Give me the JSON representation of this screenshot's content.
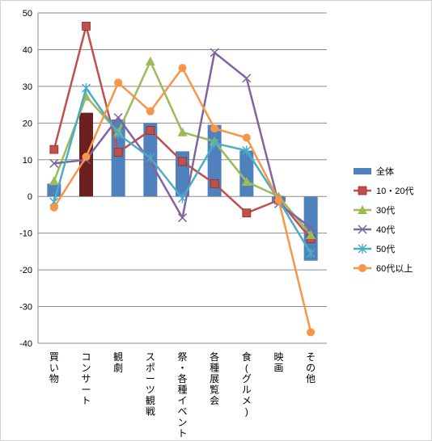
{
  "chart_data": {
    "type": "bar+line",
    "title": "",
    "xlabel": "",
    "ylabel": "",
    "ylim": [
      -40,
      50
    ],
    "yticks": [
      -40,
      -30,
      -20,
      -10,
      0,
      10,
      20,
      30,
      40,
      50
    ],
    "grid": true,
    "legend_position": "right",
    "categories": [
      "買い物",
      "コンサート",
      "観劇",
      "スポーツ観戦",
      "祭・各種イベント",
      "各種展覧会",
      "食(グルメ)",
      "映画",
      "その他"
    ],
    "bar_series": {
      "name": "全体",
      "color": "#4f81bd",
      "highlight_color": "#6b1f1f",
      "highlight_index": 1,
      "values": [
        3.5,
        22.8,
        21,
        20,
        12.3,
        19.5,
        12.5,
        -1.5,
        -17.5
      ]
    },
    "series": [
      {
        "name": "10・20代",
        "color": "#c0504d",
        "marker": "square",
        "values": [
          12.8,
          46.4,
          12.0,
          18.0,
          9.5,
          3.5,
          -4.5,
          -1.0,
          -11.5
        ]
      },
      {
        "name": "30代",
        "color": "#9bbb59",
        "marker": "triangle",
        "values": [
          4.2,
          27.2,
          17.5,
          36.8,
          17.5,
          15.0,
          4.0,
          0.0,
          -10.5
        ]
      },
      {
        "name": "40代",
        "color": "#8064a2",
        "marker": "x",
        "values": [
          9.0,
          10.0,
          21.5,
          9.5,
          -5.8,
          39.2,
          32.2,
          -2.0,
          -8.5
        ]
      },
      {
        "name": "50代",
        "color": "#4bacc6",
        "marker": "star",
        "values": [
          -1.5,
          29.5,
          17.0,
          10.5,
          -0.5,
          14.5,
          12.5,
          -1.0,
          -15.5
        ]
      },
      {
        "name": "60代以上",
        "color": "#f79646",
        "marker": "circle",
        "values": [
          -3.0,
          10.8,
          31.0,
          23.2,
          35.0,
          18.5,
          16.0,
          -1.0,
          -37.0
        ]
      }
    ]
  }
}
